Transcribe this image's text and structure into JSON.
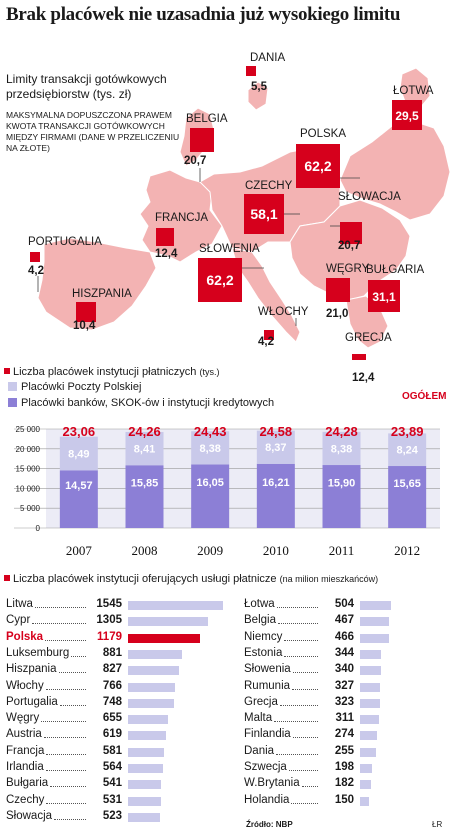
{
  "title": "Brak placówek nie uzasadnia już wysokiego limitu",
  "map": {
    "subtitle": "Limity transakcji gotówkowych przedsiębiorstw (tys. zł)",
    "note": "MAKSYMALNA DOPUSZCZONA PRAWEM KWOTA TRANSAKCJI GOTÓWKOWYCH MIĘDZY FIRMAMI (DANE W PRZELICZENIU NA ZŁOTE)",
    "colors": {
      "land": "#f3b3b3",
      "sea": "#ffffff",
      "box": "#d6001c"
    },
    "countries": [
      {
        "name": "DANIA",
        "value": "5,5",
        "amount": 5.5
      },
      {
        "name": "ŁOTWA",
        "value": "29,5",
        "amount": 29.5
      },
      {
        "name": "BELGIA",
        "value": "20,7",
        "amount": 20.7
      },
      {
        "name": "POLSKA",
        "value": "62,2",
        "amount": 62.2
      },
      {
        "name": "CZECHY",
        "value": "58,1",
        "amount": 58.1
      },
      {
        "name": "FRANCJA",
        "value": "12,4",
        "amount": 12.4
      },
      {
        "name": "SŁOWACJA",
        "value": "20,7",
        "amount": 20.7
      },
      {
        "name": "PORTUGALIA",
        "value": "4,2",
        "amount": 4.2
      },
      {
        "name": "SŁOWENIA",
        "value": "62,2",
        "amount": 62.2
      },
      {
        "name": "WĘGRY",
        "value": "21,0",
        "amount": 21.0
      },
      {
        "name": "BUŁGARIA",
        "value": "31,1",
        "amount": 31.1
      },
      {
        "name": "HISZPANIA",
        "value": "10,4",
        "amount": 10.4
      },
      {
        "name": "WŁOCHY",
        "value": "4,2",
        "amount": 4.2
      },
      {
        "name": "GRECJA",
        "value": "12,4",
        "amount": 12.4
      }
    ]
  },
  "chart_data": [
    {
      "type": "bar",
      "title": "Liczba placówek instytucji płatniczych",
      "title_unit": "(tys.)",
      "categories": [
        "2007",
        "2008",
        "2009",
        "2010",
        "2011",
        "2012"
      ],
      "series": [
        {
          "name": "Placówki banków, SKOK-ów i instytucji kredytowych",
          "values": [
            14.57,
            15.85,
            16.05,
            16.21,
            15.9,
            15.65
          ],
          "labels": [
            "14,57",
            "15,85",
            "16,05",
            "16,21",
            "15,90",
            "15,65"
          ],
          "color": "#8c7fd6"
        },
        {
          "name": "Placówki Poczty Polskiej",
          "values": [
            8.49,
            8.41,
            8.38,
            8.37,
            8.38,
            8.24
          ],
          "labels": [
            "8,49",
            "8,41",
            "8,38",
            "8,37",
            "8,38",
            "8,24"
          ],
          "color": "#c9c9ea"
        }
      ],
      "totals": [
        23.06,
        24.26,
        24.43,
        24.58,
        24.28,
        23.89
      ],
      "total_labels": [
        "23,06",
        "24,26",
        "24,43",
        "24,58",
        "24,28",
        "23,89"
      ],
      "total_label": "OGÓŁEM",
      "yticks": [
        "0",
        "5 000",
        "10 000",
        "15 000",
        "20 000",
        "25 000"
      ],
      "ylim": [
        0,
        25000
      ],
      "stacked": true,
      "legend": "top-left"
    },
    {
      "type": "bar",
      "title": "Liczba placówek instytucji oferujących usługi płatnicze",
      "title_unit": "(na milion mieszkańców)",
      "orientation": "horizontal",
      "highlight": "Polska",
      "highlight_color": "#d6001c",
      "bar_color": "#c9c9ea",
      "left": [
        {
          "name": "Litwa",
          "value": 1545
        },
        {
          "name": "Cypr",
          "value": 1305
        },
        {
          "name": "Polska",
          "value": 1179
        },
        {
          "name": "Luksemburg",
          "value": 881
        },
        {
          "name": "Hiszpania",
          "value": 827
        },
        {
          "name": "Włochy",
          "value": 766
        },
        {
          "name": "Portugalia",
          "value": 748
        },
        {
          "name": "Węgry",
          "value": 655
        },
        {
          "name": "Austria",
          "value": 619
        },
        {
          "name": "Francja",
          "value": 581
        },
        {
          "name": "Irlandia",
          "value": 564
        },
        {
          "name": "Bułgaria",
          "value": 541
        },
        {
          "name": "Czechy",
          "value": 531
        },
        {
          "name": "Słowacja",
          "value": 523
        }
      ],
      "right": [
        {
          "name": "Łotwa",
          "value": 504
        },
        {
          "name": "Belgia",
          "value": 467
        },
        {
          "name": "Niemcy",
          "value": 466
        },
        {
          "name": "Estonia",
          "value": 344
        },
        {
          "name": "Słowenia",
          "value": 340
        },
        {
          "name": "Rumunia",
          "value": 327
        },
        {
          "name": "Grecja",
          "value": 323
        },
        {
          "name": "Malta",
          "value": 311
        },
        {
          "name": "Finlandia",
          "value": 274
        },
        {
          "name": "Dania",
          "value": 255
        },
        {
          "name": "Szwecja",
          "value": 198
        },
        {
          "name": "W.Brytania",
          "value": 182
        },
        {
          "name": "Holandia",
          "value": 150
        }
      ]
    }
  ],
  "source": "Źródło: NBP",
  "author": "ŁR"
}
